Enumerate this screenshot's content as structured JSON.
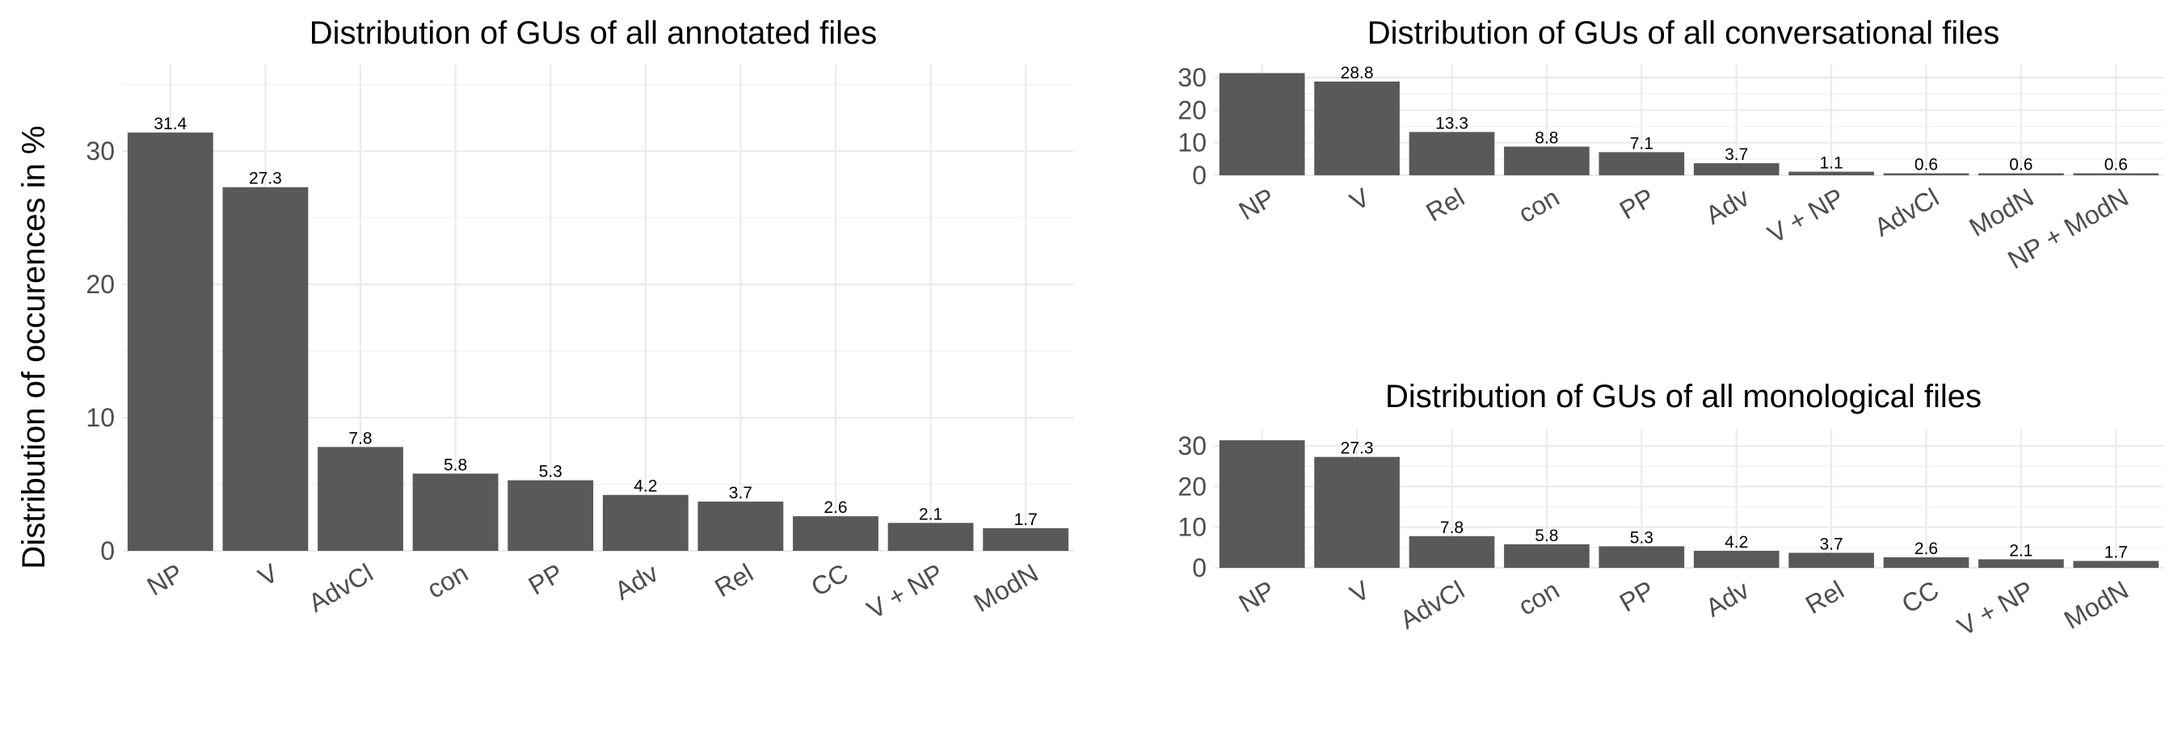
{
  "chart_data": [
    {
      "id": "all",
      "type": "bar",
      "title": "Distribution of GUs of all annotated files",
      "ylabel": "Distribution of occurences in %",
      "xlabel": "",
      "categories": [
        "NP",
        "V",
        "AdvCl",
        "con",
        "PP",
        "Adv",
        "Rel",
        "CC",
        "V + NP",
        "ModN"
      ],
      "values": [
        31.4,
        27.3,
        7.8,
        5.8,
        5.3,
        4.2,
        3.7,
        2.6,
        2.1,
        1.7
      ],
      "data_labels": [
        "31.4",
        "27.3",
        "7.8",
        "5.8",
        "5.3",
        "4.2",
        "3.7",
        "2.6",
        "2.1",
        "1.7"
      ],
      "yticks": [
        0,
        10,
        20,
        30
      ],
      "ylim": [
        0,
        36.5
      ],
      "grid": true,
      "color": "#595959"
    },
    {
      "id": "conversational",
      "type": "bar",
      "title": "Distribution of GUs of all conversational files",
      "ylabel": "",
      "xlabel": "",
      "categories": [
        "NP",
        "V",
        "Rel",
        "con",
        "PP",
        "Adv",
        "V + NP",
        "AdvCl",
        "ModN",
        "NP + ModN"
      ],
      "values": [
        31.4,
        28.8,
        13.3,
        8.8,
        7.1,
        3.7,
        1.1,
        0.6,
        0.6,
        0.6
      ],
      "data_labels": [
        "",
        "28.8",
        "13.3",
        "8.8",
        "7.1",
        "3.7",
        "1.1",
        "0.6",
        "0.6",
        "0.6"
      ],
      "yticks": [
        0,
        10,
        20,
        30
      ],
      "ylim": [
        0,
        34
      ],
      "grid": true,
      "color": "#595959"
    },
    {
      "id": "monological",
      "type": "bar",
      "title": "Distribution of GUs of all monological files",
      "ylabel": "",
      "xlabel": "",
      "categories": [
        "NP",
        "V",
        "AdvCl",
        "con",
        "PP",
        "Adv",
        "Rel",
        "CC",
        "V + NP",
        "ModN"
      ],
      "values": [
        31.4,
        27.3,
        7.8,
        5.8,
        5.3,
        4.2,
        3.7,
        2.6,
        2.1,
        1.7
      ],
      "data_labels": [
        "",
        "27.3",
        "7.8",
        "5.8",
        "5.3",
        "4.2",
        "3.7",
        "2.6",
        "2.1",
        "1.7"
      ],
      "yticks": [
        0,
        10,
        20,
        30
      ],
      "ylim": [
        0,
        34
      ],
      "grid": true,
      "color": "#595959"
    }
  ]
}
